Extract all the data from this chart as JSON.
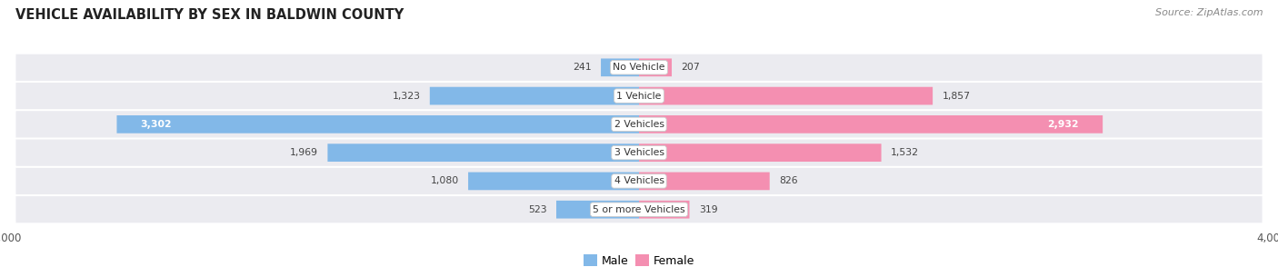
{
  "title": "VEHICLE AVAILABILITY BY SEX IN BALDWIN COUNTY",
  "source": "Source: ZipAtlas.com",
  "categories": [
    "No Vehicle",
    "1 Vehicle",
    "2 Vehicles",
    "3 Vehicles",
    "4 Vehicles",
    "5 or more Vehicles"
  ],
  "male_values": [
    241,
    1323,
    3302,
    1969,
    1080,
    523
  ],
  "female_values": [
    207,
    1857,
    2932,
    1532,
    826,
    319
  ],
  "male_color": "#82B8E8",
  "female_color": "#F48FB1",
  "background_color": "#ffffff",
  "row_bg_color": "#ebebf0",
  "axis_limit": 4000,
  "legend_male": "Male",
  "legend_female": "Female",
  "inside_label_threshold": 2500
}
